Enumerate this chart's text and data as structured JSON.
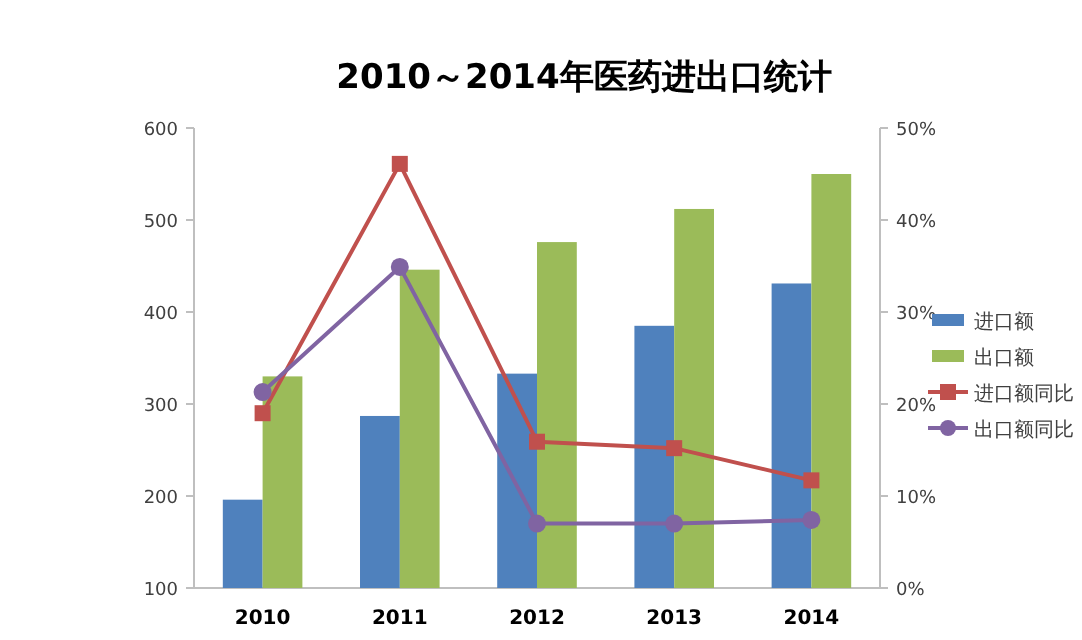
{
  "chart_data": {
    "type": "bar",
    "title": "2010～2014年医药进出口统计",
    "categories": [
      "2010",
      "2011",
      "2012",
      "2013",
      "2014"
    ],
    "series": [
      {
        "name": "进口额",
        "color": "#4f81bd",
        "values": [
          196,
          287,
          333,
          385,
          431
        ]
      },
      {
        "name": "出口额",
        "color": "#9bbb59",
        "values": [
          330,
          446,
          476,
          512,
          550
        ]
      },
      {
        "name": "进口额同比",
        "type": "line",
        "axis": "y2",
        "marker": "square",
        "color": "#c0504d",
        "values": [
          19.0,
          46.1,
          15.9,
          15.2,
          11.7
        ]
      },
      {
        "name": "出口额同比",
        "type": "line",
        "axis": "y2",
        "marker": "circle",
        "color": "#8064a2",
        "values": [
          21.3,
          34.9,
          7.0,
          7.0,
          7.4
        ]
      }
    ],
    "ylim": [
      100,
      600
    ],
    "yticks": [
      100,
      200,
      300,
      400,
      500,
      600
    ],
    "y2lim": [
      0,
      50
    ],
    "y2ticks": [
      {
        "value": 0,
        "label": "0%"
      },
      {
        "value": 10,
        "label": "10%"
      },
      {
        "value": 20,
        "label": "20%"
      },
      {
        "value": 30,
        "label": "30%"
      },
      {
        "value": 40,
        "label": "40%"
      },
      {
        "value": 50,
        "label": "50%"
      }
    ],
    "grid": false,
    "legend": "right"
  }
}
